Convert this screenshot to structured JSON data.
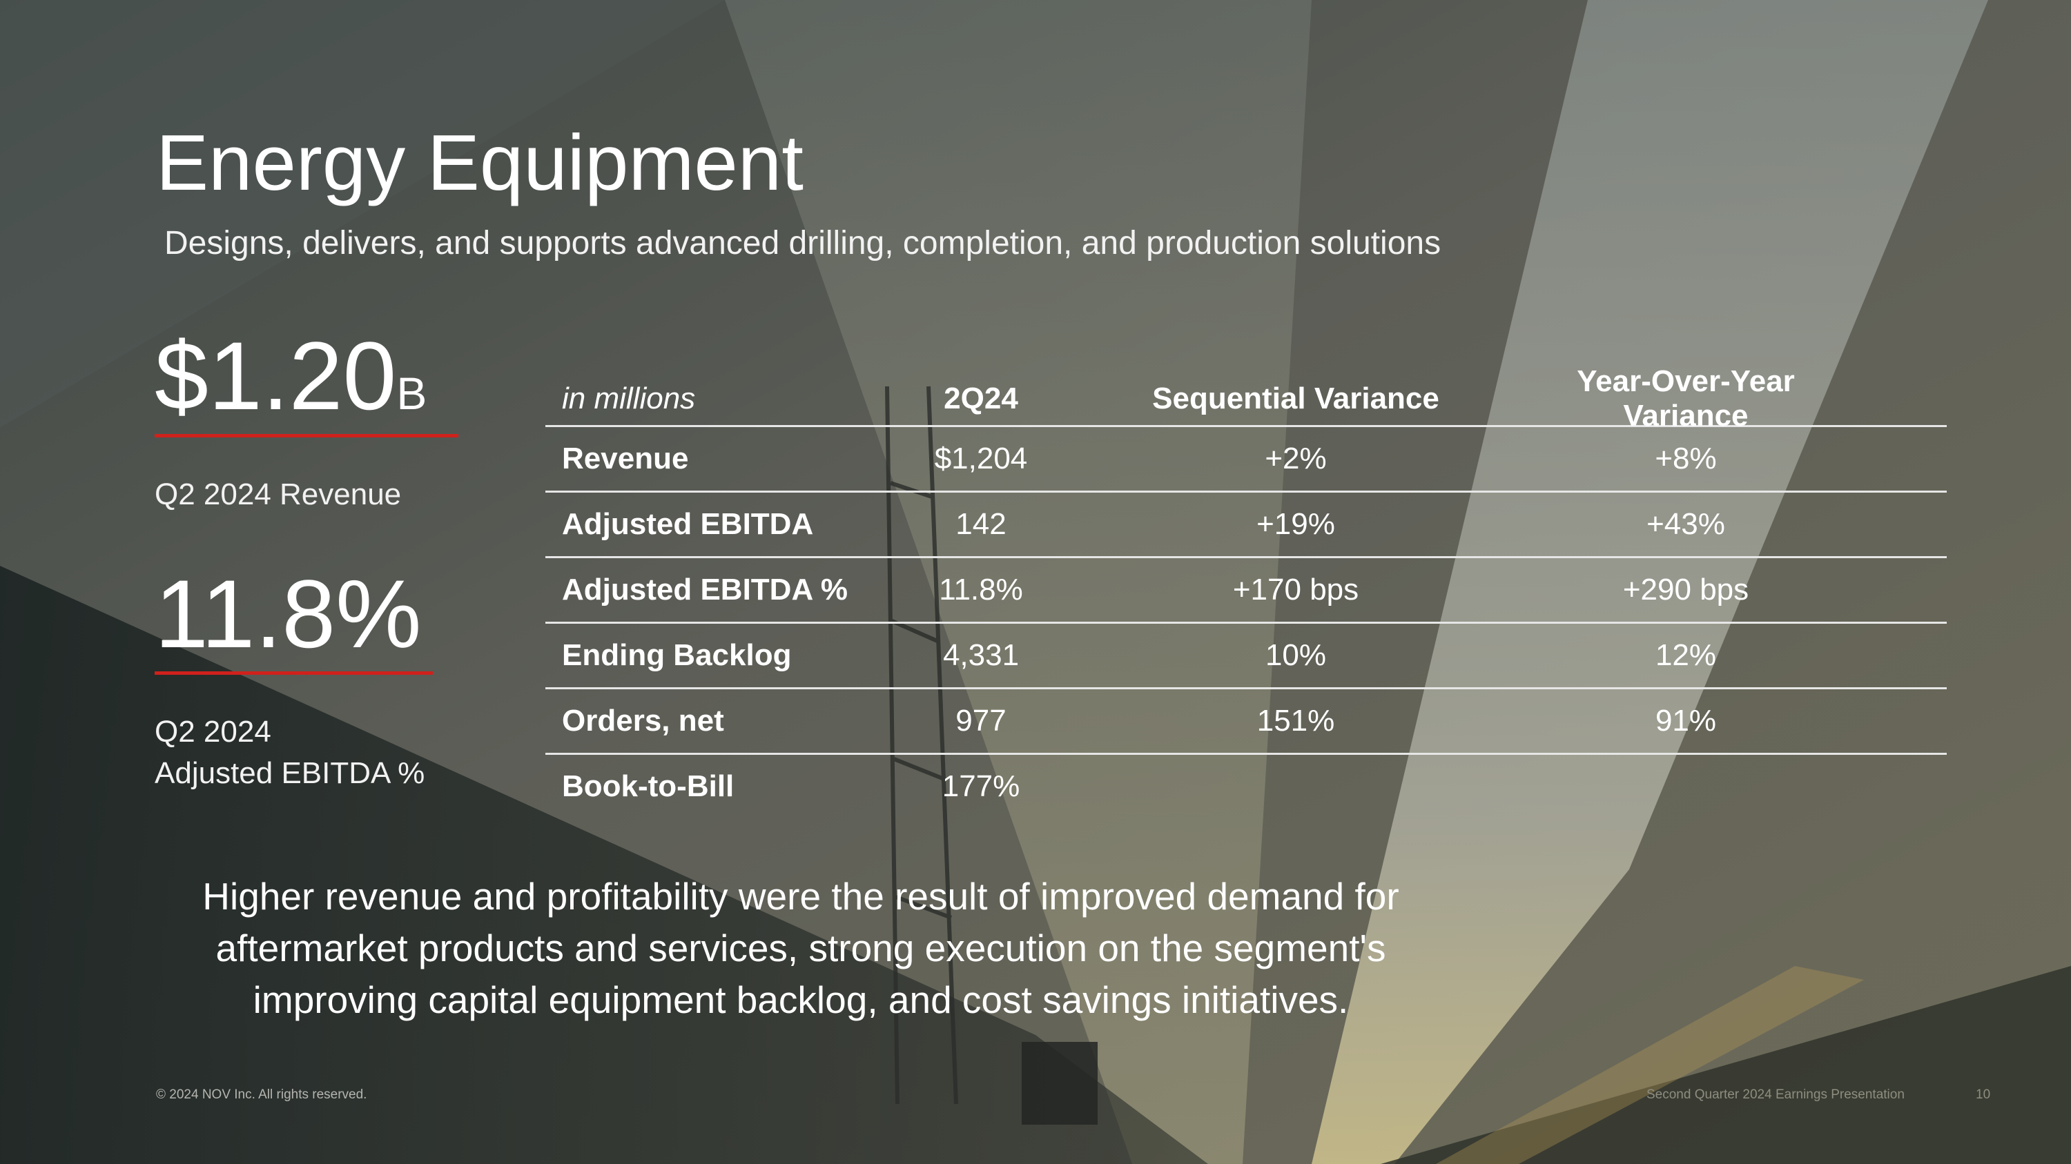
{
  "slide": {
    "title": "Energy Equipment",
    "subtitle": "Designs, delivers, and supports advanced drilling, completion, and production solutions"
  },
  "kpis": [
    {
      "value": "$1.20",
      "unit": "B",
      "label_line1": "Q2 2024 Revenue",
      "label_line2": ""
    },
    {
      "value": "11.8%",
      "unit": "",
      "label_line1": "Q2 2024",
      "label_line2": "Adjusted EBITDA %"
    }
  ],
  "table": {
    "headers": [
      "in millions",
      "2Q24",
      "Sequential Variance",
      "Year-Over-Year Variance"
    ],
    "rows": [
      [
        "Revenue",
        "$1,204",
        "+2%",
        "+8%"
      ],
      [
        "Adjusted EBITDA",
        "142",
        "+19%",
        "+43%"
      ],
      [
        "Adjusted EBITDA %",
        "11.8%",
        "+170 bps",
        "+290 bps"
      ],
      [
        "Ending Backlog",
        "4,331",
        "10%",
        "12%"
      ],
      [
        "Orders, net",
        "977",
        "151%",
        "91%"
      ],
      [
        "Book-to-Bill",
        "177%",
        "",
        ""
      ]
    ]
  },
  "summary": "Higher revenue and profitability were the result of improved demand for aftermarket products and services, strong execution on the segment's improving capital equipment backlog, and cost savings initiatives.",
  "footer": {
    "copyright": "© 2024 NOV Inc. All rights reserved.",
    "presentation_title": "Second Quarter 2024 Earnings Presentation",
    "page_number": "10"
  },
  "colors": {
    "accent_red": "#d0211c"
  }
}
